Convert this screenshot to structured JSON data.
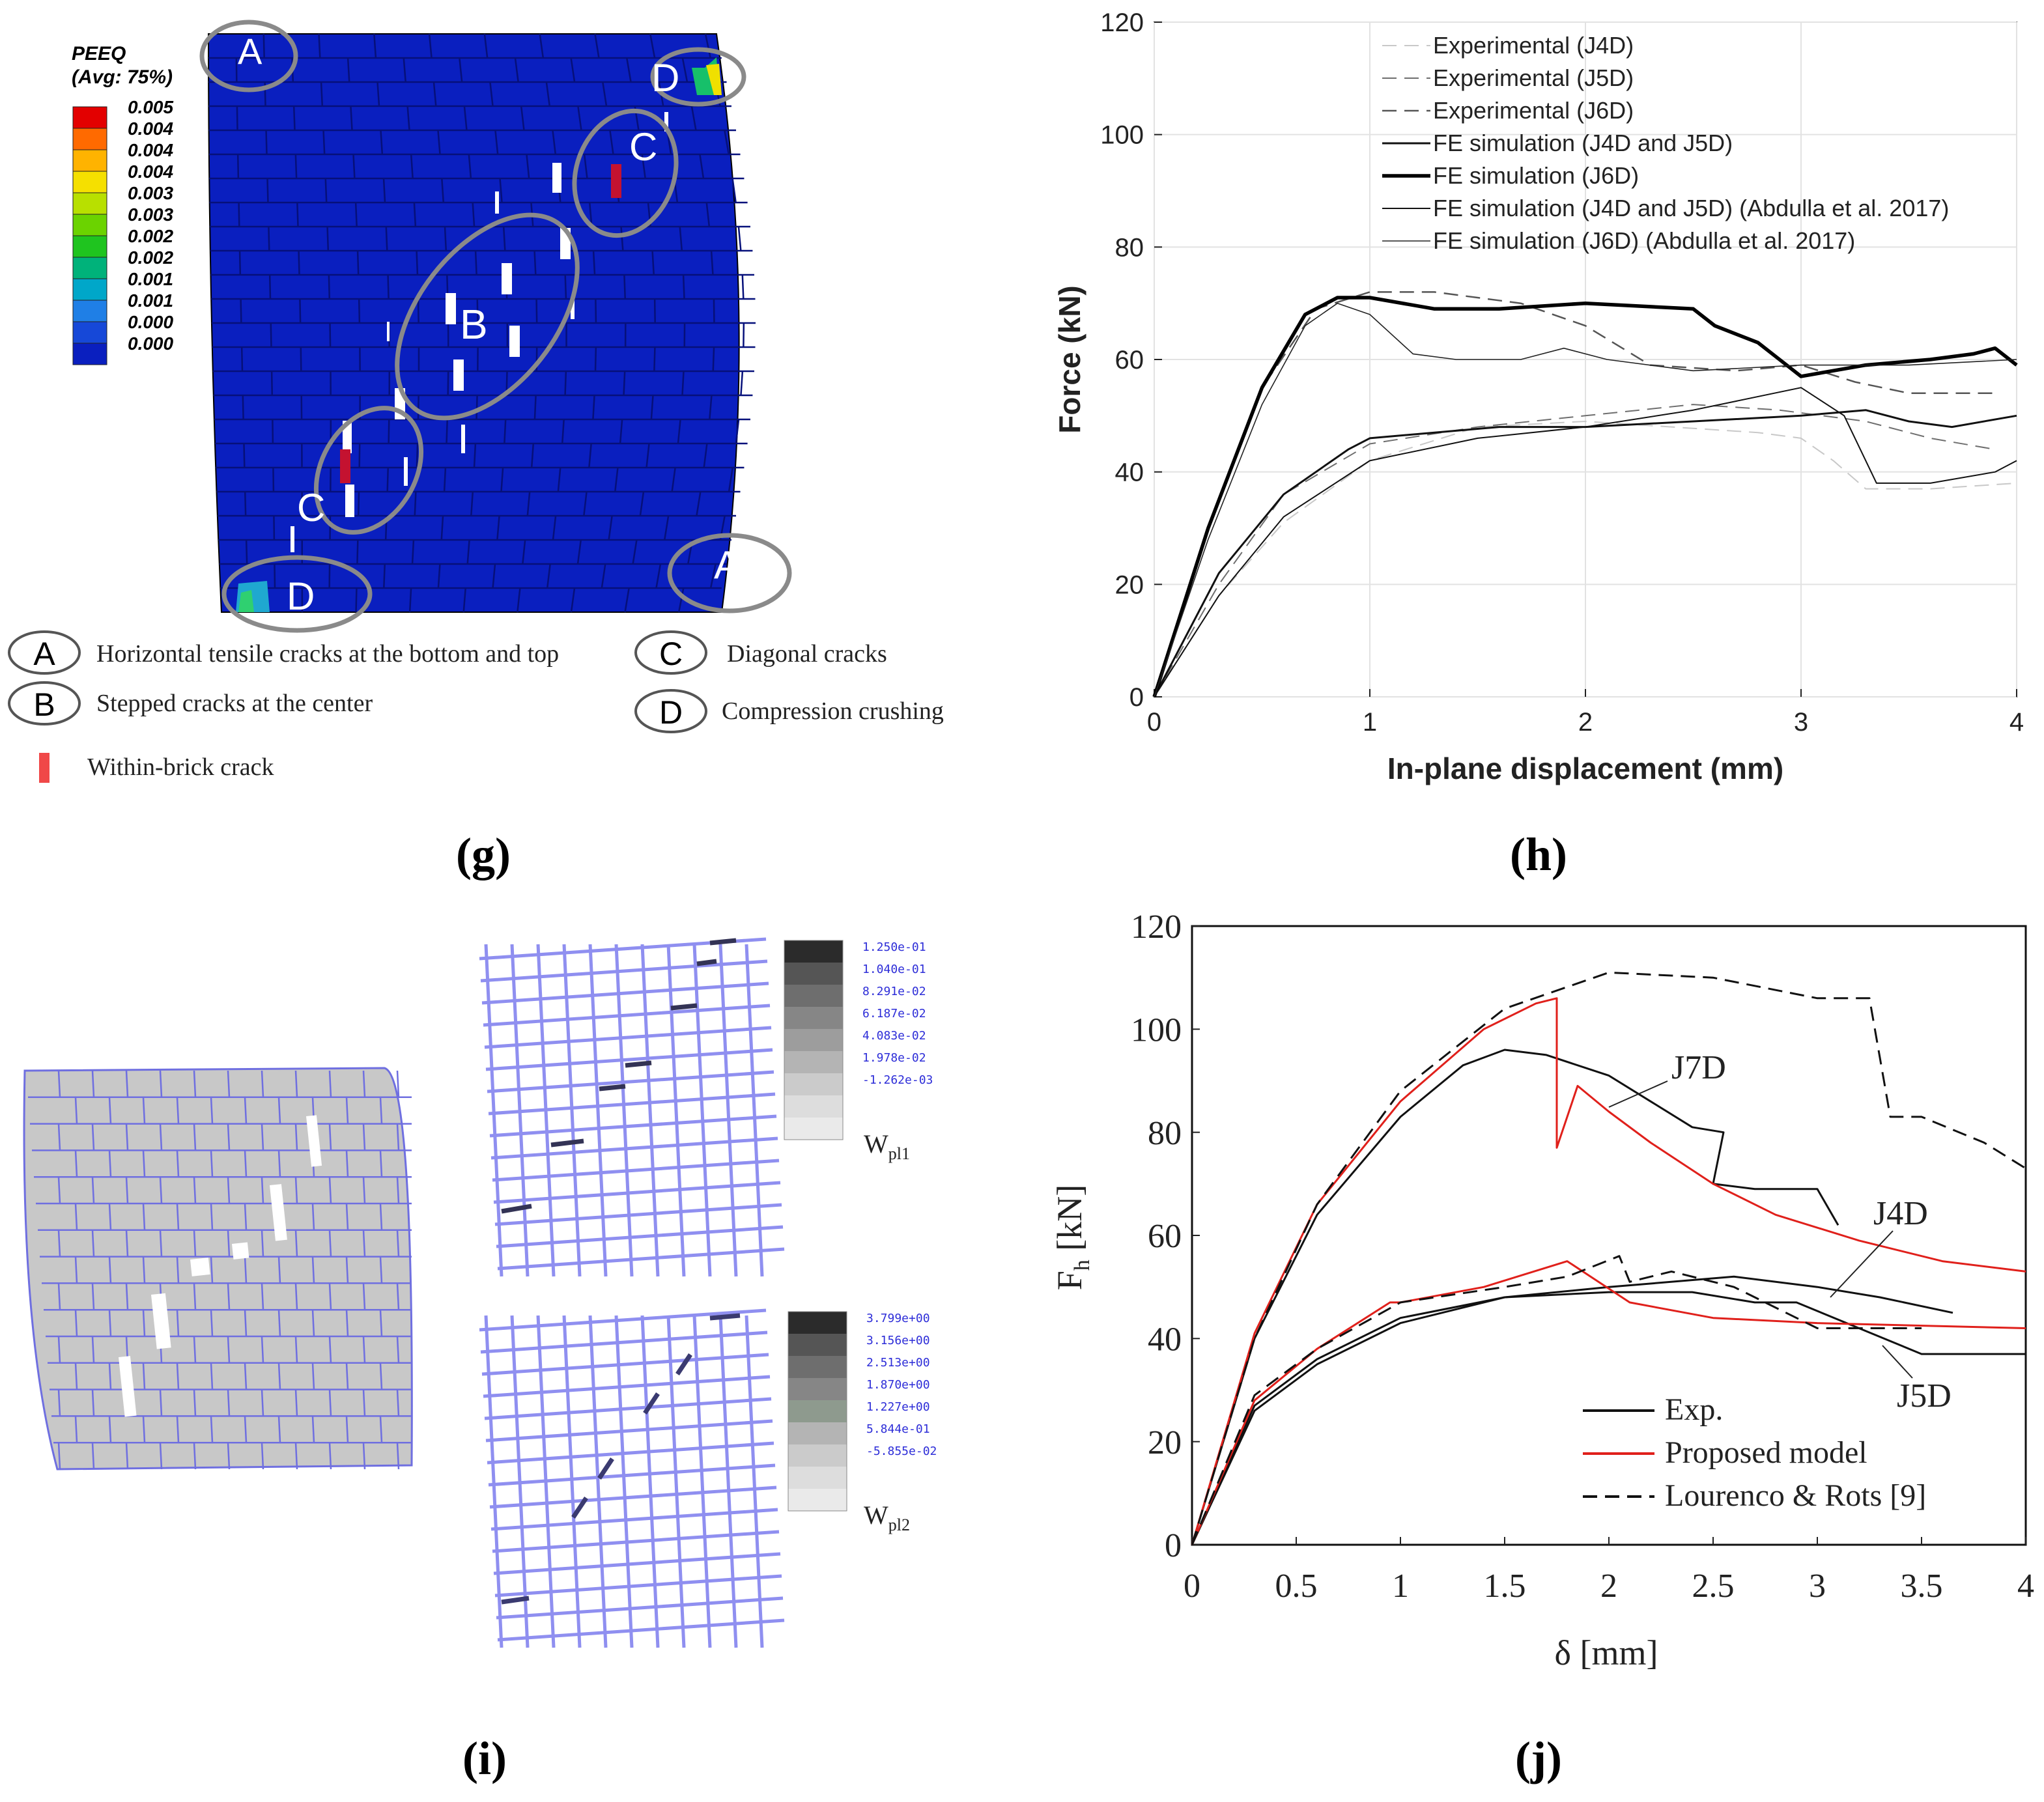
{
  "panels": {
    "g": {
      "label": "(g)",
      "legend_title": "PEEQ",
      "legend_subtitle": "(Avg: 75%)",
      "legend_values": [
        "0.005",
        "0.004",
        "0.004",
        "0.004",
        "0.003",
        "0.003",
        "0.002",
        "0.002",
        "0.001",
        "0.001",
        "0.000",
        "0.000"
      ],
      "legend_colors": [
        "#e30000",
        "#ff6a00",
        "#ffb300",
        "#f5e000",
        "#b8e000",
        "#6bd300",
        "#1fc41f",
        "#00b27a",
        "#00a7c9",
        "#1f7fe6",
        "#1648d8",
        "#0a1fbf"
      ],
      "regions": [
        {
          "letter": "A",
          "desc": "Horizontal tensile cracks at the bottom and top"
        },
        {
          "letter": "B",
          "desc": "Stepped cracks at the center"
        },
        {
          "letter": "C",
          "desc": "Diagonal cracks"
        },
        {
          "letter": "D",
          "desc": "Compression crushing"
        }
      ],
      "within_brick": "Within-brick crack"
    },
    "h": {
      "label": "(h)"
    },
    "i": {
      "label": "(i)",
      "cb1_values": [
        "1.250e-01",
        "1.040e-01",
        "8.291e-02",
        "6.187e-02",
        "4.083e-02",
        "1.978e-02",
        "-1.262e-03"
      ],
      "cb2_values": [
        "3.799e+00",
        "3.156e+00",
        "2.513e+00",
        "1.870e+00",
        "1.227e+00",
        "5.844e-01",
        "-5.855e-02"
      ],
      "w1_base": "W",
      "w1_sub": "pl1",
      "w2_base": "W",
      "w2_sub": "pl2"
    },
    "j": {
      "label": "(j)"
    }
  },
  "chart_data": [
    {
      "type": "line",
      "panel": "h",
      "xlabel": "In-plane displacement (mm)",
      "ylabel": "Force (kN)",
      "xlim": [
        0,
        4
      ],
      "ylim": [
        0,
        120
      ],
      "xticks": [
        "0",
        "1",
        "2",
        "3",
        "4"
      ],
      "yticks": [
        "0",
        "20",
        "40",
        "60",
        "80",
        "100",
        "120"
      ],
      "grid": true,
      "legend_position": "top",
      "series": [
        {
          "name": "Experimental (J4D)",
          "color": "#c8c8c8",
          "dash": "dash",
          "width": 2,
          "x": [
            0,
            0.3,
            0.6,
            1.0,
            1.5,
            2.0,
            2.4,
            2.8,
            3.0,
            3.15,
            3.3,
            3.6,
            4.0
          ],
          "y": [
            0,
            18,
            31,
            42,
            48,
            49,
            48,
            47,
            46,
            42,
            37,
            37,
            38
          ]
        },
        {
          "name": "Experimental (J5D)",
          "color": "#6e6e6e",
          "dash": "dash",
          "width": 2,
          "x": [
            0,
            0.3,
            0.6,
            1.0,
            1.5,
            2.0,
            2.5,
            2.9,
            3.1,
            3.3,
            3.6,
            3.9
          ],
          "y": [
            0,
            20,
            36,
            45,
            48,
            50,
            52,
            51,
            50,
            49,
            46,
            44
          ]
        },
        {
          "name": "Experimental (J6D)",
          "color": "#555555",
          "dash": "dash",
          "width": 2.5,
          "x": [
            0,
            0.25,
            0.5,
            0.75,
            1.0,
            1.3,
            1.7,
            2.0,
            2.3,
            2.7,
            3.0,
            3.25,
            3.5,
            3.9
          ],
          "y": [
            0,
            30,
            55,
            69,
            72,
            72,
            70,
            66,
            59,
            58,
            59,
            56,
            54,
            54
          ]
        },
        {
          "name": "FE simulation (J4D and J5D)",
          "color": "#111111",
          "dash": "solid",
          "width": 3,
          "x": [
            0,
            0.3,
            0.6,
            0.9,
            1.0,
            1.3,
            1.6,
            2.0,
            2.5,
            3.0,
            3.3,
            3.5,
            3.7,
            4.0
          ],
          "y": [
            0,
            22,
            36,
            44,
            46,
            47,
            48,
            48,
            49,
            50,
            51,
            49,
            48,
            50
          ]
        },
        {
          "name": "FE simulation (J6D)",
          "color": "#000000",
          "dash": "solid",
          "width": 5.5,
          "x": [
            0,
            0.25,
            0.5,
            0.7,
            0.85,
            1.0,
            1.3,
            1.6,
            2.0,
            2.5,
            2.6,
            2.8,
            2.9,
            3.0,
            3.3,
            3.6,
            3.8,
            3.9,
            4.0
          ],
          "y": [
            0,
            30,
            55,
            68,
            71,
            71,
            69,
            69,
            70,
            69,
            66,
            63,
            60,
            57,
            59,
            60,
            61,
            62,
            59
          ]
        },
        {
          "name": "FE simulation (J4D and J5D) (Abdulla et al. 2017)",
          "color": "#111111",
          "dash": "solid",
          "width": 2,
          "x": [
            0,
            0.3,
            0.6,
            1.0,
            1.5,
            2.0,
            2.5,
            3.0,
            3.2,
            3.35,
            3.6,
            3.9,
            4.0
          ],
          "y": [
            0,
            18,
            32,
            42,
            46,
            48,
            51,
            55,
            50,
            38,
            38,
            40,
            42
          ]
        },
        {
          "name": "FE simulation (J6D) (Abdulla et al. 2017)",
          "color": "#222222",
          "dash": "solid",
          "width": 1.6,
          "x": [
            0,
            0.25,
            0.5,
            0.7,
            0.85,
            1.0,
            1.2,
            1.4,
            1.7,
            1.9,
            2.1,
            2.5,
            3.0,
            3.5,
            4.0
          ],
          "y": [
            0,
            28,
            52,
            66,
            70,
            68,
            61,
            60,
            60,
            62,
            60,
            58,
            59,
            59,
            60
          ]
        }
      ]
    },
    {
      "type": "line",
      "panel": "j",
      "xlabel": "δ [mm]",
      "ylabel_base": "F",
      "ylabel_sub": "h",
      "ylabel_unit": " [kN]",
      "xlim": [
        0,
        4
      ],
      "ylim": [
        0,
        120
      ],
      "xticks": [
        "0",
        "0.5",
        "1",
        "1.5",
        "2",
        "2.5",
        "3",
        "3.5",
        "4"
      ],
      "yticks": [
        "0",
        "20",
        "40",
        "60",
        "80",
        "100",
        "120"
      ],
      "grid": false,
      "legend_position": "bottom-right",
      "annotations": [
        "J7D",
        "J4D",
        "J5D"
      ],
      "series": [
        {
          "name": "Exp.",
          "color": "#111111",
          "dash": "solid",
          "width": 3,
          "x": [
            0,
            0.3,
            0.6,
            1.0,
            1.3,
            1.5,
            1.7,
            2.0,
            2.2,
            2.4,
            2.55,
            2.5,
            2.7,
            3.0,
            3.1
          ],
          "y": [
            0,
            40,
            64,
            83,
            93,
            96,
            95,
            91,
            86,
            81,
            80,
            70,
            69,
            69,
            62
          ]
        },
        {
          "name": "Proposed model",
          "color": "#e0201b",
          "dash": "solid",
          "width": 3,
          "x": [
            0,
            0.3,
            0.6,
            1.0,
            1.4,
            1.65,
            1.75,
            1.75,
            1.85,
            2.0,
            2.2,
            2.5,
            2.8,
            3.2,
            3.6,
            4.0
          ],
          "y": [
            0,
            41,
            66,
            86,
            100,
            105,
            106,
            77,
            89,
            84,
            78,
            70,
            64,
            59,
            55,
            53
          ]
        },
        {
          "name": "Lourenco & Rots [9]",
          "color": "#111111",
          "dash": "dash",
          "width": 3,
          "x": [
            0,
            0.3,
            0.6,
            1.0,
            1.5,
            2.0,
            2.5,
            3.0,
            3.25,
            3.35,
            3.5,
            3.8,
            4.0
          ],
          "y": [
            0,
            40,
            66,
            88,
            104,
            111,
            110,
            106,
            106,
            83,
            83,
            78,
            73
          ]
        },
        {
          "name": "",
          "color": "#111111",
          "dash": "solid",
          "width": 3,
          "x": [
            0,
            0.3,
            0.6,
            1.0,
            1.5,
            2.0,
            2.6,
            3.0,
            3.3,
            3.65
          ],
          "y": [
            0,
            27,
            36,
            44,
            48,
            50,
            52,
            50,
            48,
            45
          ]
        },
        {
          "name": "",
          "color": "#111111",
          "dash": "solid",
          "width": 3,
          "x": [
            0,
            0.3,
            0.6,
            1.0,
            1.5,
            2.0,
            2.4,
            2.7,
            2.9,
            3.2,
            3.5,
            4.0
          ],
          "y": [
            0,
            26,
            35,
            43,
            48,
            49,
            49,
            47,
            47,
            42,
            37,
            37
          ]
        },
        {
          "name": "",
          "color": "#e0201b",
          "dash": "solid",
          "width": 3,
          "x": [
            0,
            0.3,
            0.6,
            0.95,
            1.0,
            1.4,
            1.8,
            2.1,
            2.5,
            3.0,
            4.0
          ],
          "y": [
            0,
            28,
            38,
            47,
            47,
            50,
            55,
            47,
            44,
            43,
            42
          ]
        },
        {
          "name": "",
          "color": "#111111",
          "dash": "dash",
          "width": 3,
          "x": [
            0,
            0.3,
            0.6,
            1.0,
            1.5,
            1.8,
            2.05,
            2.1,
            2.3,
            2.6,
            3.0,
            3.5
          ],
          "y": [
            0,
            29,
            38,
            47,
            50,
            52,
            56,
            51,
            53,
            50,
            42,
            42
          ]
        }
      ]
    }
  ]
}
